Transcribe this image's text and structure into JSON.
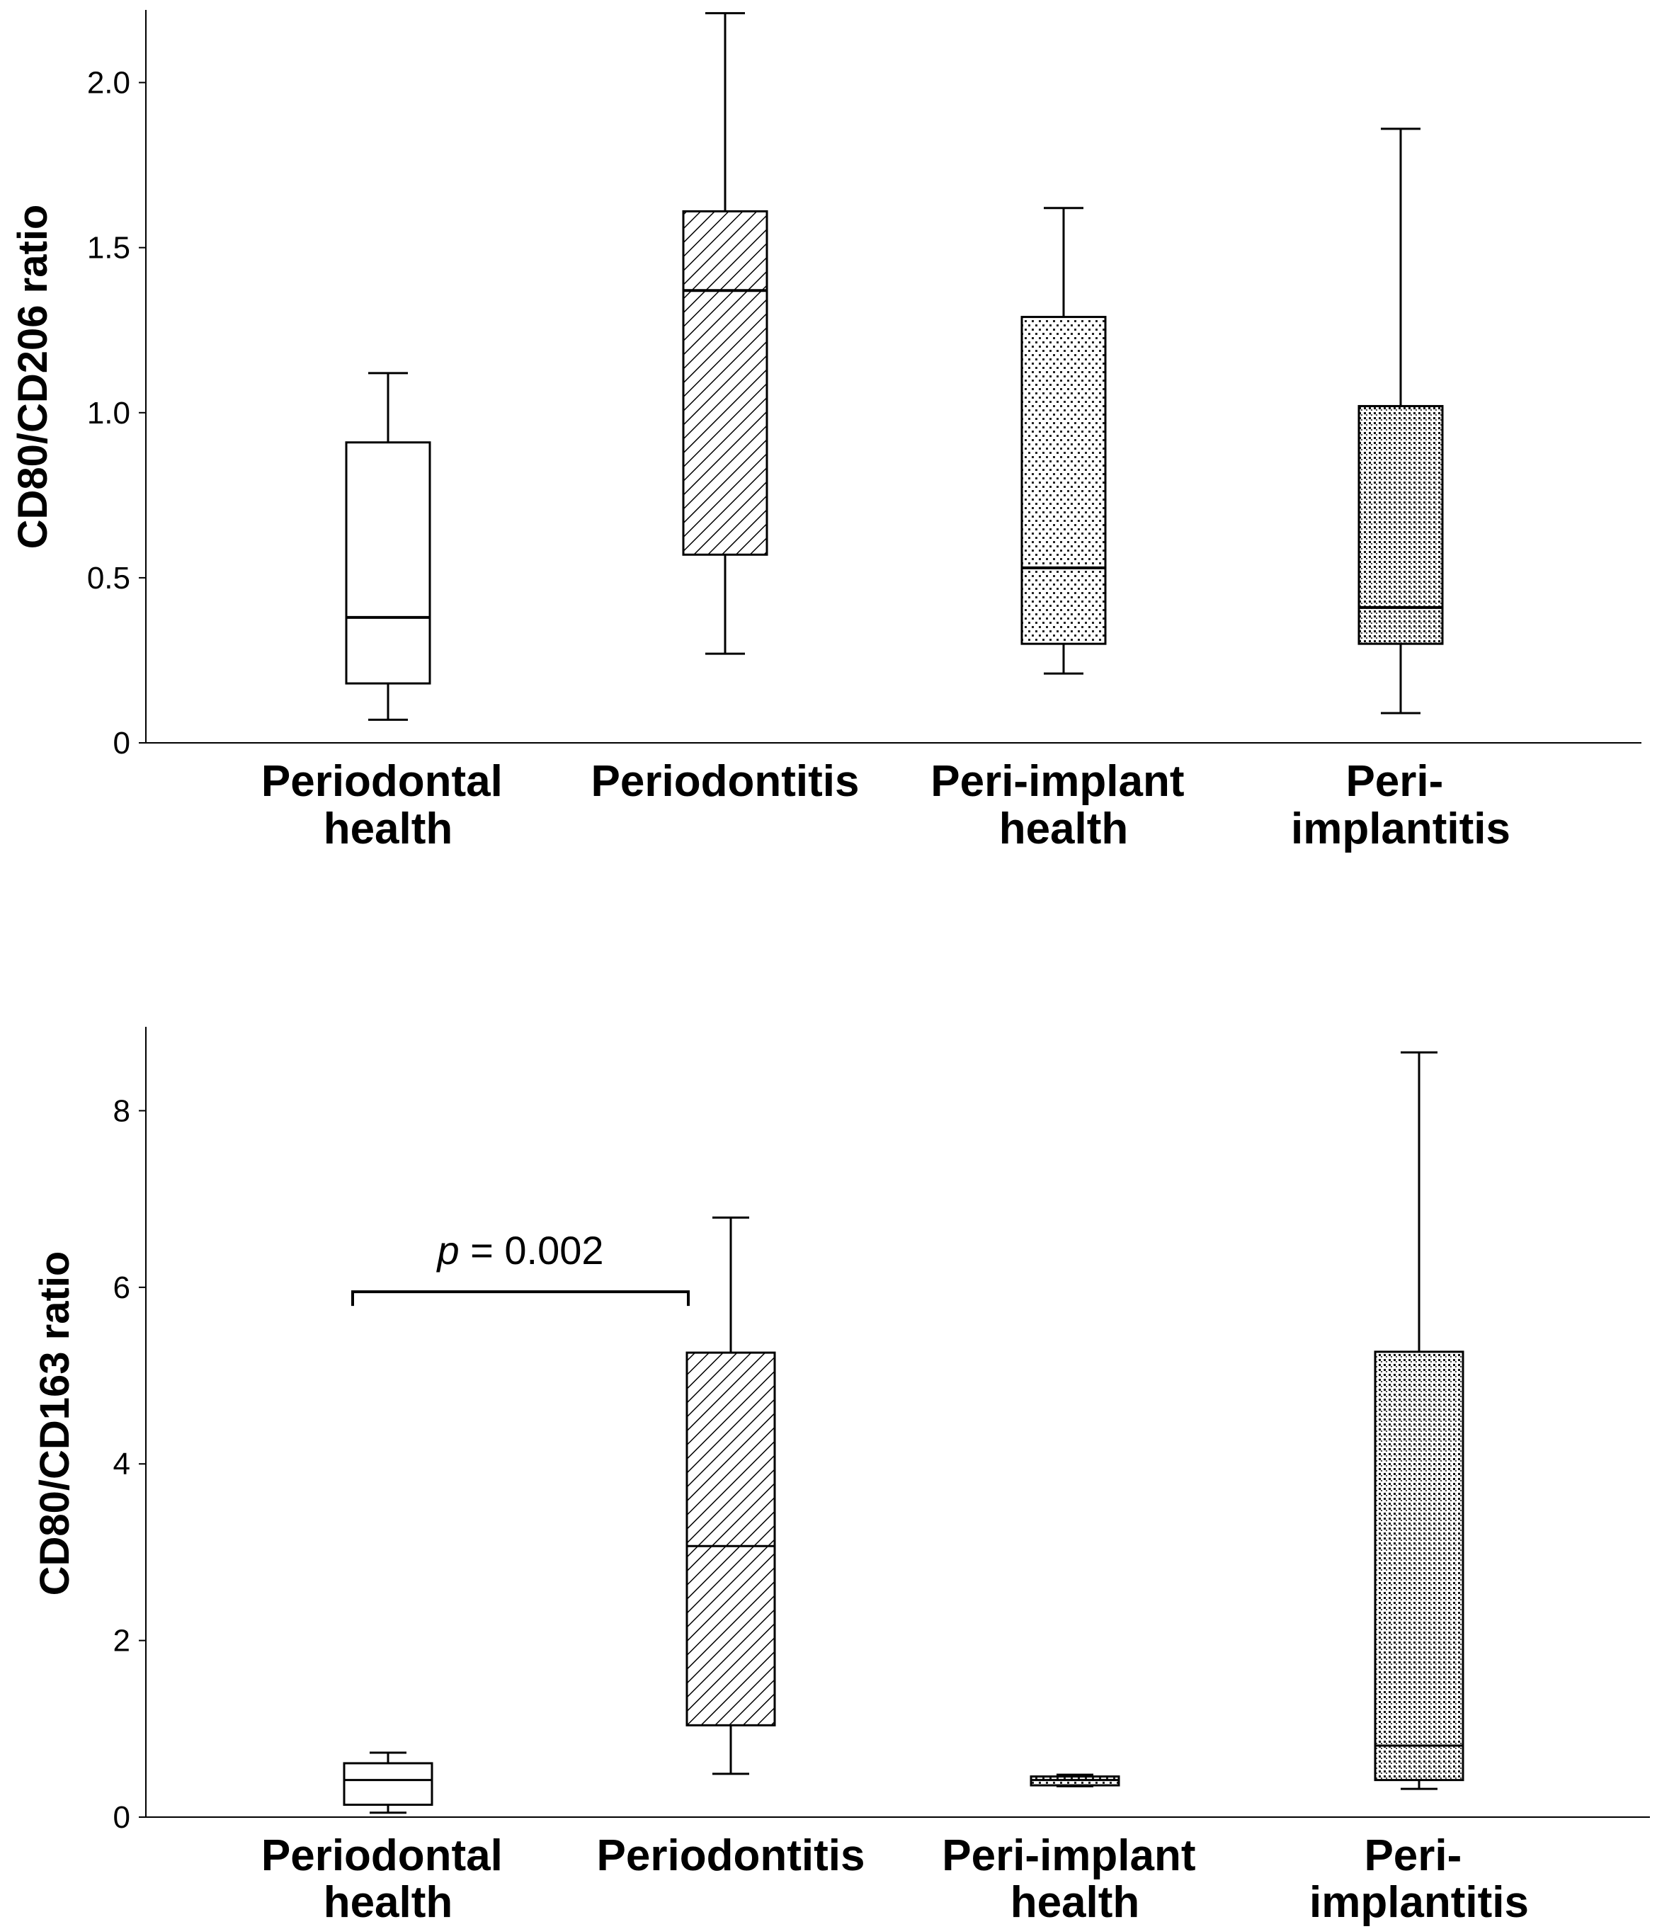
{
  "chart_data": [
    {
      "type": "boxplot",
      "ylabel": "CD80/CD206 ratio",
      "ylim": [
        0,
        2.22
      ],
      "yticks": [
        0,
        0.5,
        1.0,
        1.5,
        2.0
      ],
      "ytick_labels": [
        "0",
        "0.5",
        "1.0",
        "1.5",
        "2.0"
      ],
      "categories": [
        {
          "lines": [
            "Periodontal",
            "health"
          ],
          "pattern": "none",
          "min": 0.07,
          "q1": 0.18,
          "median": 0.38,
          "q3": 0.91,
          "max": 1.12
        },
        {
          "lines": [
            "Periodontitis"
          ],
          "pattern": "diagonal",
          "min": 0.27,
          "q1": 0.57,
          "median": 1.37,
          "q3": 1.61,
          "max": 2.21
        },
        {
          "lines": [
            "Peri-implant",
            "health"
          ],
          "pattern": "dots-sparse",
          "min": 0.21,
          "q1": 0.3,
          "median": 0.53,
          "q3": 1.29,
          "max": 1.62
        },
        {
          "lines": [
            "Peri-",
            "implantitis"
          ],
          "pattern": "dots-dense",
          "min": 0.09,
          "q1": 0.3,
          "median": 0.41,
          "q3": 1.02,
          "max": 1.86
        }
      ],
      "annotation": null
    },
    {
      "type": "boxplot",
      "ylabel": "CD80/CD163 ratio",
      "ylim": [
        0,
        8.95
      ],
      "yticks": [
        0,
        2,
        4,
        6,
        8
      ],
      "ytick_labels": [
        "0",
        "2",
        "4",
        "6",
        "8"
      ],
      "categories": [
        {
          "lines": [
            "Periodontal",
            "health"
          ],
          "pattern": "none",
          "min": 0.05,
          "q1": 0.14,
          "median": 0.42,
          "q3": 0.61,
          "max": 0.73
        },
        {
          "lines": [
            "Periodontitis"
          ],
          "pattern": "diagonal",
          "min": 0.49,
          "q1": 1.04,
          "median": 3.07,
          "q3": 5.26,
          "max": 6.79
        },
        {
          "lines": [
            "Peri-implant",
            "health"
          ],
          "pattern": "dots-sparse",
          "min": 0.35,
          "q1": 0.36,
          "median": 0.42,
          "q3": 0.46,
          "max": 0.48
        },
        {
          "lines": [
            "Peri-",
            "implantitis"
          ],
          "pattern": "dots-dense",
          "min": 0.32,
          "q1": 0.42,
          "median": 0.81,
          "q3": 5.27,
          "max": 8.66
        }
      ],
      "annotation": {
        "italic": "p",
        "rest": " = 0.002",
        "between": [
          0,
          1
        ],
        "level": 5.95
      }
    }
  ]
}
